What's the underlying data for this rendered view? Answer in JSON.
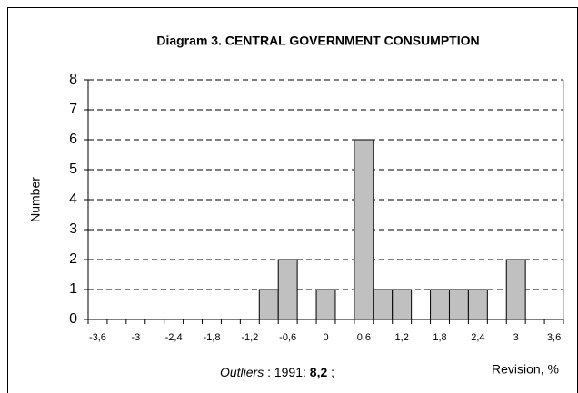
{
  "chart_data": {
    "type": "bar",
    "title": "Diagram 3.  CENTRAL GOVERNMENT CONSUMPTION",
    "y_label": "Number",
    "x_label": "Revision, %",
    "categories": [
      "-3,6",
      null,
      "-3",
      null,
      "-2,4",
      null,
      "-1,8",
      null,
      "-1,2",
      null,
      "-0,6",
      null,
      "0",
      null,
      "0,6",
      null,
      "1,2",
      null,
      "1,8",
      null,
      "2,4",
      null,
      "3",
      null,
      "3,6"
    ],
    "values": [
      0,
      0,
      0,
      0,
      0,
      0,
      0,
      0,
      0,
      1,
      2,
      0,
      1,
      0,
      6,
      1,
      1,
      0,
      1,
      1,
      1,
      0,
      2,
      0,
      0
    ],
    "color": "#c0c0c0",
    "ylim": [
      0,
      8
    ],
    "yticks": [
      0,
      1,
      2,
      3,
      4,
      5,
      6,
      7,
      8
    ],
    "grid": true,
    "note": {
      "label": "Outliers",
      "text": " : 1991: ",
      "value": "8,2",
      "end": " ;"
    }
  }
}
